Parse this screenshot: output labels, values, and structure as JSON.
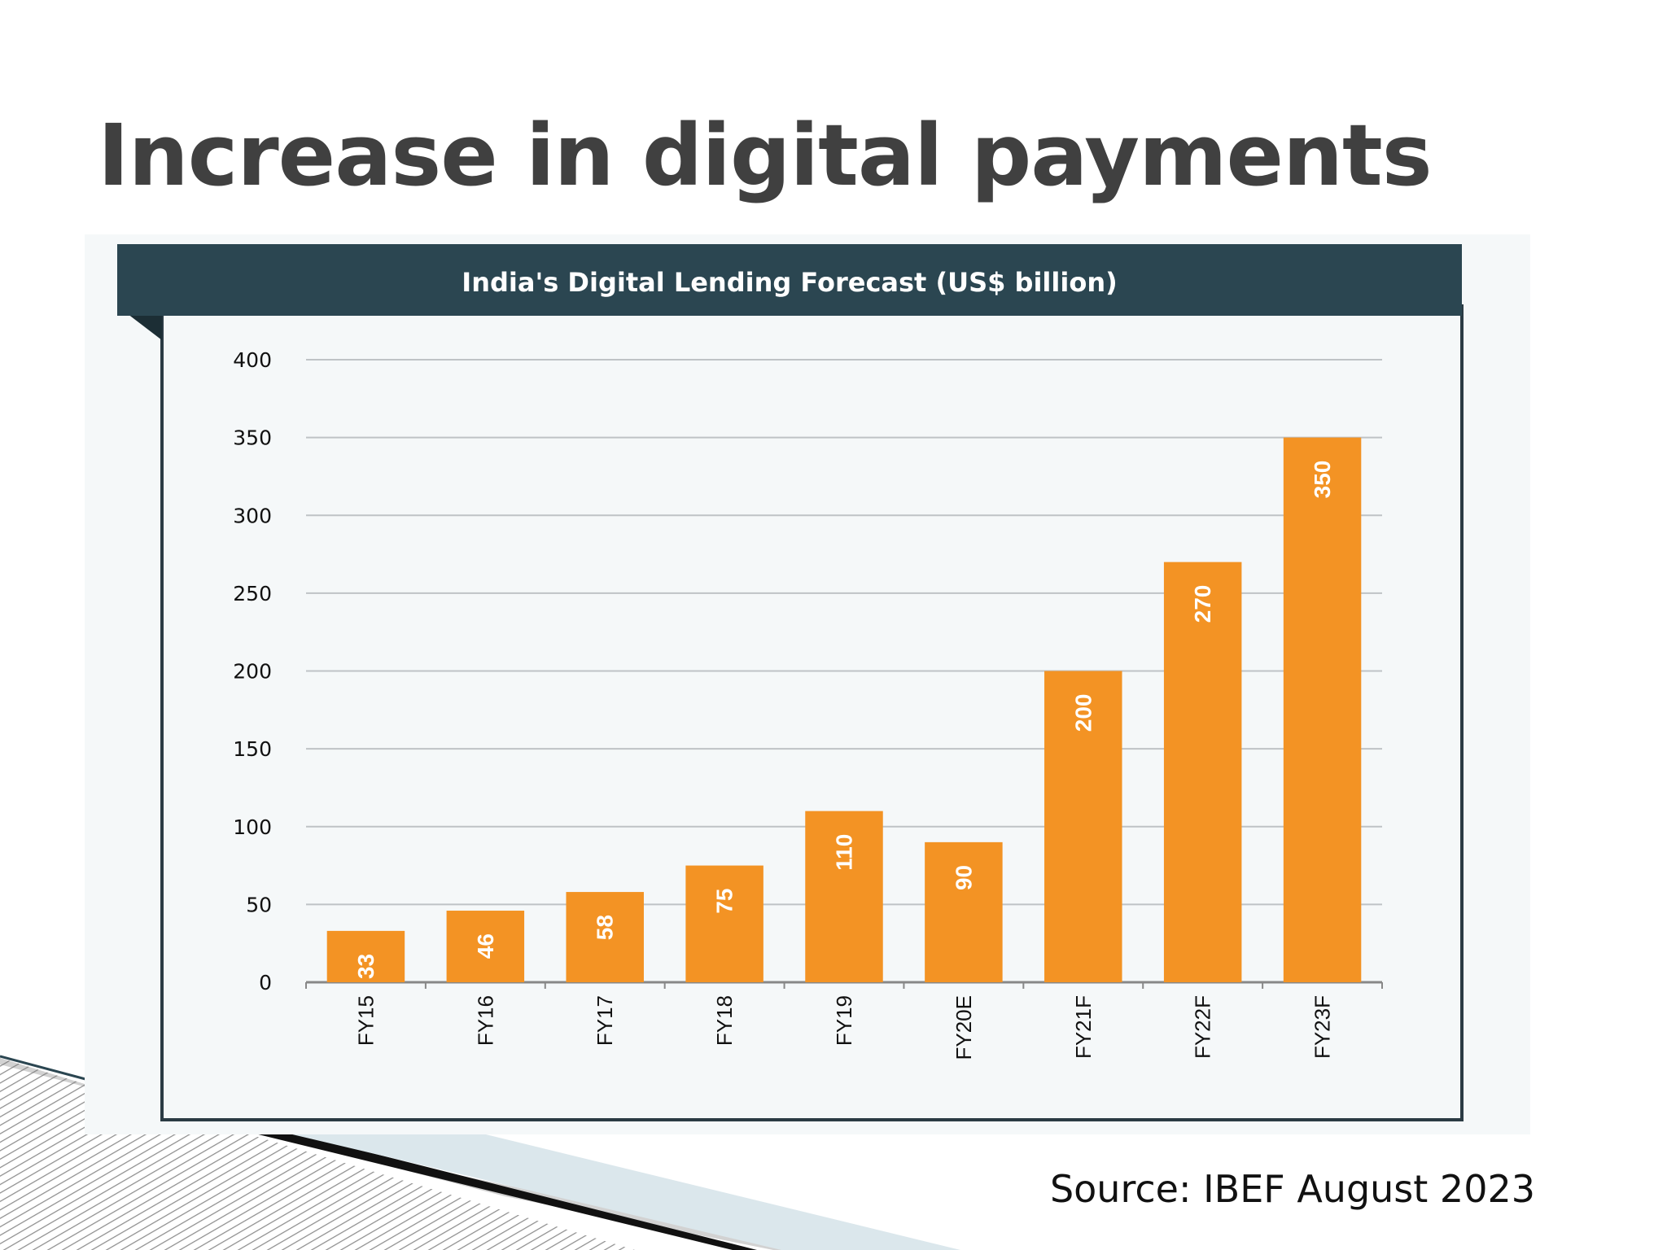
{
  "slide": {
    "title": "Increase in digital payments",
    "source": "Source: IBEF August 2023"
  },
  "colors": {
    "title_text": "#404040",
    "header_bar": "#2b4651",
    "bar_fill": "#f39324",
    "gridline": "#bfc3c6",
    "panel_bg": "#f5f8f9",
    "panel_border": "#2b3b44"
  },
  "chart_data": {
    "type": "bar",
    "title": "India's Digital Lending Forecast (US$ billion)",
    "categories": [
      "FY15",
      "FY16",
      "FY17",
      "FY18",
      "FY19",
      "FY20E",
      "FY21F",
      "FY22F",
      "FY23F"
    ],
    "values": [
      33,
      46,
      58,
      75,
      110,
      90,
      200,
      270,
      350
    ],
    "data_labels": [
      "33",
      "46",
      "58",
      "75",
      "110",
      "90",
      "200",
      "270",
      "350"
    ],
    "ylim": [
      0,
      400
    ],
    "yticks": [
      0,
      50,
      100,
      150,
      200,
      250,
      300,
      350,
      400
    ],
    "grid": true,
    "legend": "none",
    "data_label_orientation": "vertical-inside-bar",
    "xlabel": "",
    "ylabel": ""
  }
}
